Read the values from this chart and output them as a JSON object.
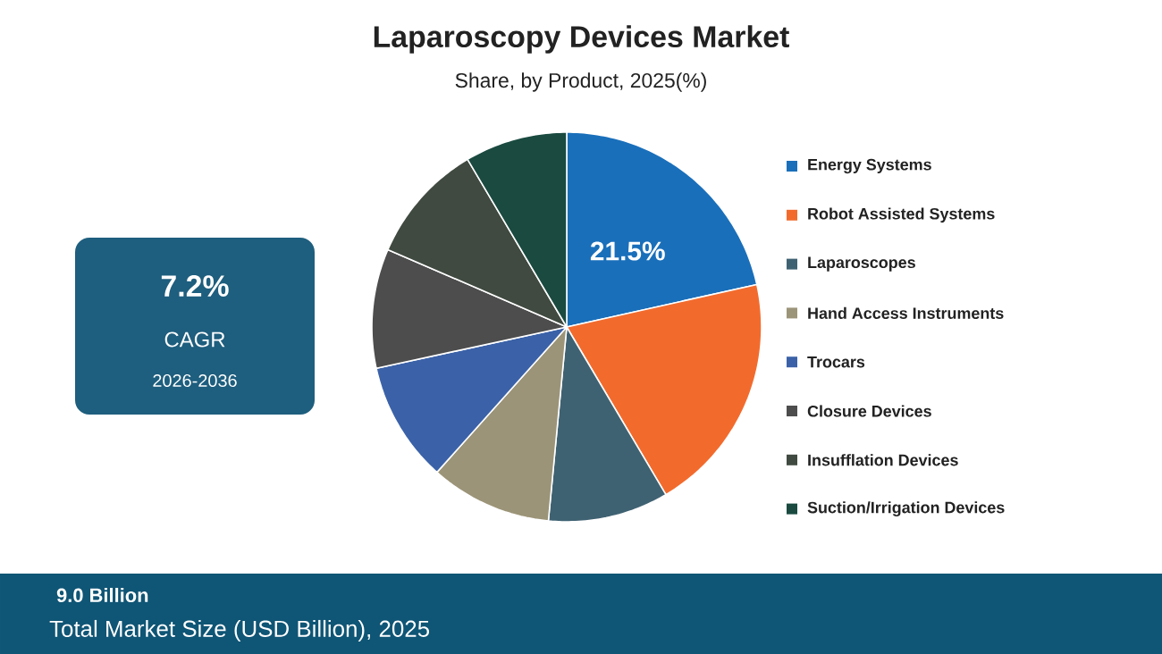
{
  "chart_data": {
    "type": "pie",
    "title": "Laparoscopy Devices Market",
    "subtitle": "Share, by Product, 2025(%)",
    "categories": [
      "Energy Systems",
      "Robot Assisted Systems",
      "Laparoscopes",
      "Hand Access Instruments",
      "Trocars",
      "Closure Devices",
      "Insufflation Devices",
      "Suction/Irrigation Devices"
    ],
    "values": [
      21.5,
      20.0,
      10.0,
      10.1,
      10.0,
      9.9,
      10.0,
      8.5
    ],
    "colors": [
      "#1a6fba",
      "#f26b2d",
      "#3f6272",
      "#9c9478",
      "#3b62a8",
      "#4d4d4d",
      "#404a40",
      "#1a4a40"
    ],
    "value_labels": [
      "21.5%",
      null,
      null,
      null,
      null,
      null,
      null,
      null
    ],
    "legend": "right",
    "annotations": [
      "7.2%",
      "CAGR",
      "2026-2036",
      "9.0 Billion",
      "Total Market Size (USD Billion), 2025"
    ]
  }
}
